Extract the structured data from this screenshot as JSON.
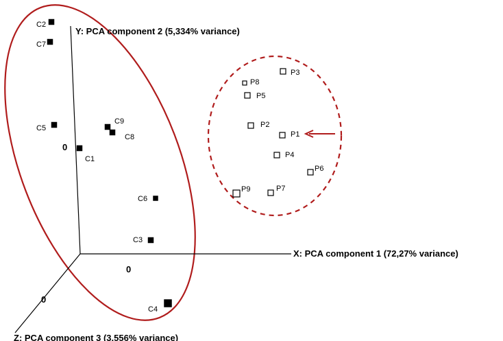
{
  "chart_data": {
    "type": "scatter",
    "projection": "3d",
    "axes": {
      "x": {
        "label": "X: PCA component 1 (72,27% variance)",
        "origin_label": "0"
      },
      "y": {
        "label": "Y: PCA component 2 (5,334% variance)",
        "origin_label": "0"
      },
      "z": {
        "label": "Z: PCA component 3 (3,556% variance)",
        "origin_label": "0"
      }
    },
    "grid": false,
    "legend": "none",
    "groups": [
      {
        "group": "C",
        "marker": "filled-square",
        "color": "#000000",
        "enclosure": "solid-ellipse"
      },
      {
        "group": "P",
        "marker": "open-square",
        "color": "#000000",
        "enclosure": "dashed-ellipse"
      }
    ],
    "enclosure_color": "#b01c1c",
    "annotation": {
      "type": "arrow",
      "target": "P1",
      "color": "#b01c1c"
    },
    "points": [
      "C1",
      "C2",
      "C3",
      "C4",
      "C5",
      "C6",
      "C7",
      "C8",
      "C9",
      "P1",
      "P2",
      "P3",
      "P4",
      "P5",
      "P6",
      "P7",
      "P8",
      "P9"
    ]
  }
}
